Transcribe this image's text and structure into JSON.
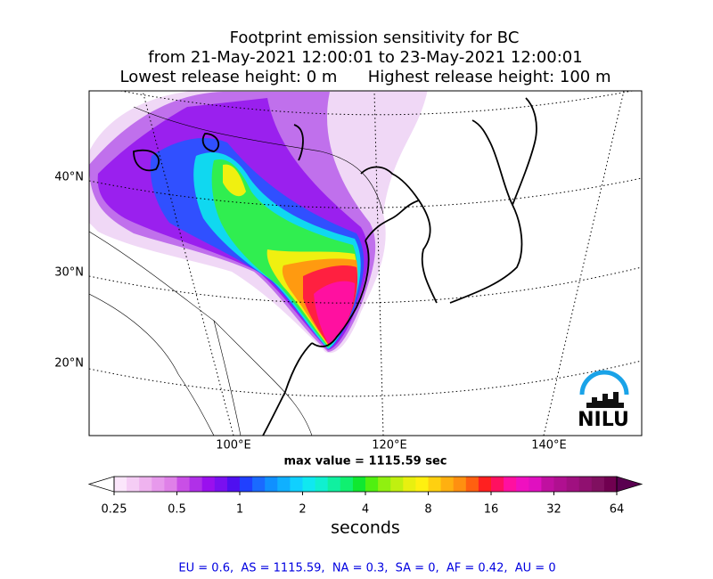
{
  "header": {
    "title_lines": [
      "Footprint emission sensitivity for BC",
      "from 21-May-2021 12:00:01 to 23-May-2021 12:00:01",
      "Lowest release height: 0 m      Highest release height: 100 m"
    ]
  },
  "map": {
    "lat_labels": [
      "40°N",
      "30°N",
      "20°N"
    ],
    "lon_labels": [
      "100°E",
      "120°E",
      "140°E"
    ],
    "max_value": "max value = 1115.59 sec",
    "logo_text": "NILU"
  },
  "colorbar": {
    "lim": [
      0.25,
      64
    ],
    "log_scale": true,
    "ticks": [
      0.25,
      0.5,
      1,
      2,
      4,
      8,
      16,
      32,
      64
    ],
    "label": "seconds",
    "colors": [
      "#fbe6fb",
      "#f5cdf5",
      "#efb3ef",
      "#e799ec",
      "#df80e8",
      "#c94fe6",
      "#b030e8",
      "#9a10ee",
      "#7a10f0",
      "#4f10f0",
      "#2040ff",
      "#1a6aff",
      "#1090ff",
      "#10b0ff",
      "#10d0ff",
      "#10e8f0",
      "#10f0d0",
      "#10f0a0",
      "#10f070",
      "#10e830",
      "#50f010",
      "#90f010",
      "#c0f010",
      "#e8f010",
      "#fff010",
      "#ffd010",
      "#ffb010",
      "#ff9010",
      "#ff6010",
      "#ff2020",
      "#ff1060",
      "#ff10a0",
      "#f010c0",
      "#e010c0",
      "#c010a0",
      "#b01090",
      "#a01080",
      "#901070",
      "#801060",
      "#700050"
    ],
    "extend_colors": [
      "#ffffff",
      "#5a0050"
    ]
  },
  "footer": {
    "stats": "EU = 0.6,  AS = 1115.59,  NA = 0.3,  SA = 0,  AF = 0.42,  AU = 0"
  }
}
